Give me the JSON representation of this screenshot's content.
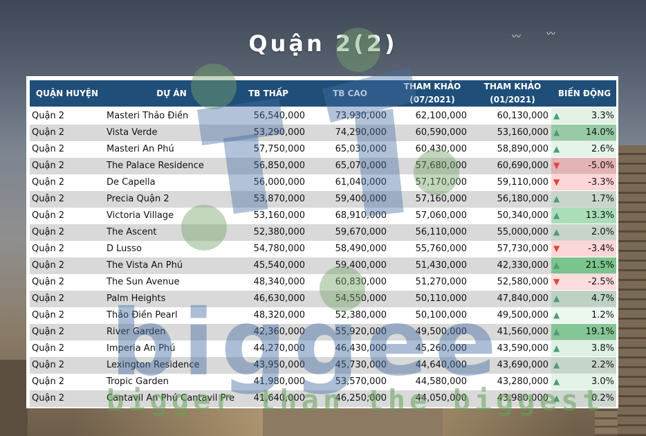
{
  "title": "Quận 2(2)",
  "watermark": {
    "brand": "biggee",
    "tagline": "bigger than the biggest"
  },
  "colors": {
    "header_bg": "#1f4e79",
    "alt_row": "#d9d9d9",
    "up_arrow": "#4f9a77",
    "down_arrow": "#e0453a"
  },
  "chart_data": {
    "type": "table",
    "columns": [
      "QUẬN HUYỆN",
      "DỰ ÁN",
      "TB THẤP",
      "TB CAO",
      "THAM KHẢO (07/2021)",
      "THAM KHẢO (01/2021)",
      "BIẾN ĐỘNG"
    ],
    "header_labels": {
      "district": "QUẬN HUYỆN",
      "project": "DỰ ÁN",
      "low": "TB THẤP",
      "high": "TB CAO",
      "ref1_l1": "THAM KHẢO",
      "ref1_l2": "(07/2021)",
      "ref2_l1": "THAM KHẢO",
      "ref2_l2": "(01/2021)",
      "change": "BIẾN ĐỘNG"
    },
    "rows": [
      {
        "district": "Quận 2",
        "project": "Masteri Thảo Điền",
        "low": "56,540,000",
        "high": "73,930,000",
        "ref1": "62,100,000",
        "ref2": "60,130,000",
        "change": "3.3%",
        "direction": "up",
        "value": 3.3
      },
      {
        "district": "Quận 2",
        "project": "Vista Verde",
        "low": "53,290,000",
        "high": "74,290,000",
        "ref1": "60,590,000",
        "ref2": "53,160,000",
        "change": "14.0%",
        "direction": "up",
        "value": 14.0
      },
      {
        "district": "Quận 2",
        "project": "Masteri An Phú",
        "low": "57,750,000",
        "high": "65,030,000",
        "ref1": "60,430,000",
        "ref2": "58,890,000",
        "change": "2.6%",
        "direction": "up",
        "value": 2.6
      },
      {
        "district": "Quận 2",
        "project": "The Palace Residence",
        "low": "56,850,000",
        "high": "65,070,000",
        "ref1": "57,680,000",
        "ref2": "60,690,000",
        "change": "-5.0%",
        "direction": "down",
        "value": -5.0
      },
      {
        "district": "Quận 2",
        "project": "De Capella",
        "low": "56,000,000",
        "high": "61,040,000",
        "ref1": "57,170,000",
        "ref2": "59,110,000",
        "change": "-3.3%",
        "direction": "down",
        "value": -3.3
      },
      {
        "district": "Quận 2",
        "project": "Precia Quận 2",
        "low": "53,870,000",
        "high": "59,400,000",
        "ref1": "57,160,000",
        "ref2": "56,180,000",
        "change": "1.7%",
        "direction": "up",
        "value": 1.7
      },
      {
        "district": "Quận 2",
        "project": "Victoria Village",
        "low": "53,160,000",
        "high": "68,910,000",
        "ref1": "57,060,000",
        "ref2": "50,340,000",
        "change": "13.3%",
        "direction": "up",
        "value": 13.3
      },
      {
        "district": "Quận 2",
        "project": "The Ascent",
        "low": "52,380,000",
        "high": "59,670,000",
        "ref1": "56,110,000",
        "ref2": "55,000,000",
        "change": "2.0%",
        "direction": "up",
        "value": 2.0
      },
      {
        "district": "Quận 2",
        "project": "D Lusso",
        "low": "54,780,000",
        "high": "58,490,000",
        "ref1": "55,760,000",
        "ref2": "57,730,000",
        "change": "-3.4%",
        "direction": "down",
        "value": -3.4
      },
      {
        "district": "Quận 2",
        "project": "The Vista An Phú",
        "low": "45,540,000",
        "high": "59,400,000",
        "ref1": "51,430,000",
        "ref2": "42,330,000",
        "change": "21.5%",
        "direction": "up",
        "value": 21.5
      },
      {
        "district": "Quận 2",
        "project": "The Sun Avenue",
        "low": "48,340,000",
        "high": "60,830,000",
        "ref1": "51,270,000",
        "ref2": "52,580,000",
        "change": "-2.5%",
        "direction": "down",
        "value": -2.5
      },
      {
        "district": "Quận 2",
        "project": "Palm Heights",
        "low": "46,630,000",
        "high": "54,550,000",
        "ref1": "50,110,000",
        "ref2": "47,840,000",
        "change": "4.7%",
        "direction": "up",
        "value": 4.7
      },
      {
        "district": "Quận 2",
        "project": "Thảo Điền Pearl",
        "low": "48,320,000",
        "high": "52,380,000",
        "ref1": "50,100,000",
        "ref2": "49,500,000",
        "change": "1.2%",
        "direction": "up",
        "value": 1.2
      },
      {
        "district": "Quận 2",
        "project": "River Garden",
        "low": "42,360,000",
        "high": "55,920,000",
        "ref1": "49,500,000",
        "ref2": "41,560,000",
        "change": "19.1%",
        "direction": "up",
        "value": 19.1
      },
      {
        "district": "Quận 2",
        "project": "Imperia An Phú",
        "low": "44,270,000",
        "high": "46,430,000",
        "ref1": "45,260,000",
        "ref2": "43,590,000",
        "change": "3.8%",
        "direction": "up",
        "value": 3.8
      },
      {
        "district": "Quận 2",
        "project": "Lexington Residence",
        "low": "43,950,000",
        "high": "45,730,000",
        "ref1": "44,640,000",
        "ref2": "43,690,000",
        "change": "2.2%",
        "direction": "up",
        "value": 2.2
      },
      {
        "district": "Quận 2",
        "project": "Tropic Garden",
        "low": "41,980,000",
        "high": "53,570,000",
        "ref1": "44,580,000",
        "ref2": "43,280,000",
        "change": "3.0%",
        "direction": "up",
        "value": 3.0
      },
      {
        "district": "Quận 2",
        "project": "Cantavil An Phú Cantavil Pre",
        "low": "41,640,000",
        "high": "46,250,000",
        "ref1": "44,050,000",
        "ref2": "43,980,000",
        "change": "0.2%",
        "direction": "up",
        "value": 0.2
      }
    ]
  }
}
